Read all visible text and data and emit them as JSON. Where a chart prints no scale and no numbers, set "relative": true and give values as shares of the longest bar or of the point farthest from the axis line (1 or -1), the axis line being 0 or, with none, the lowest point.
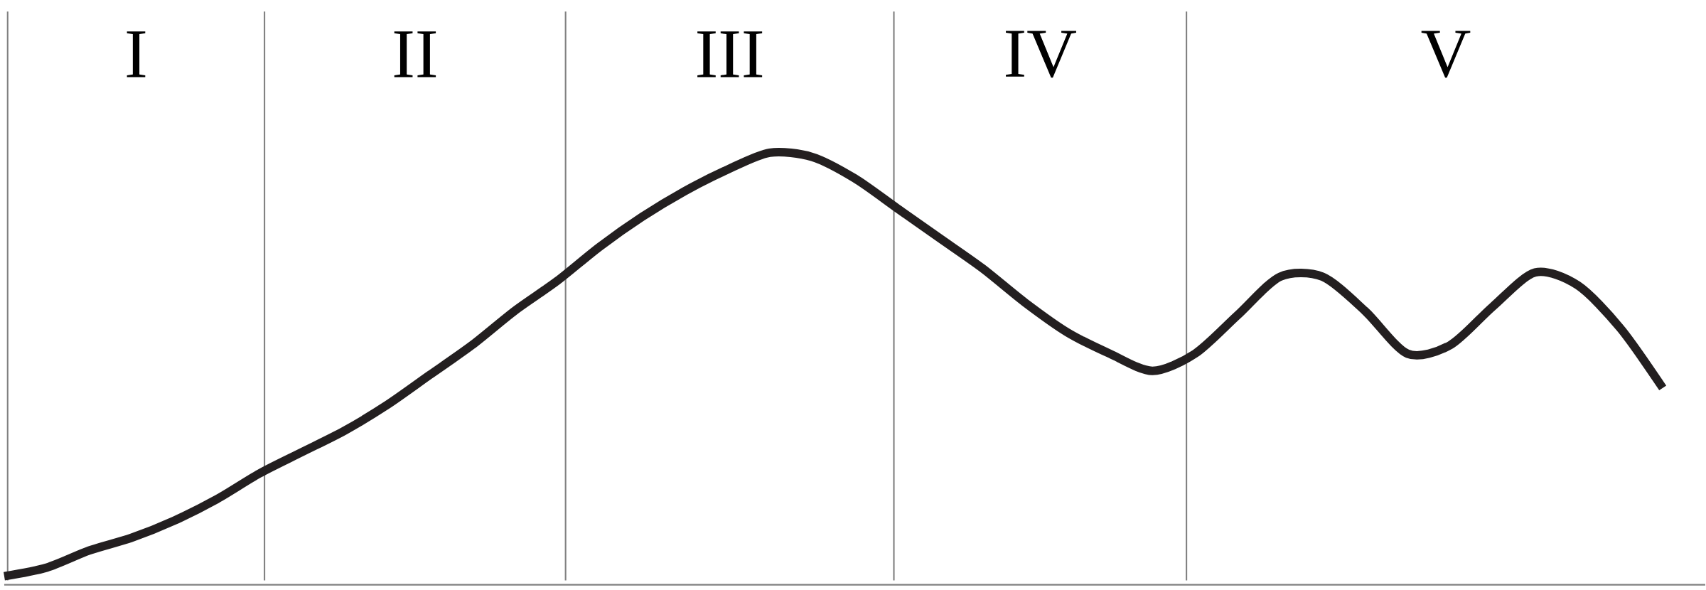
{
  "chart_data": {
    "type": "line",
    "relative": true,
    "color": "#231f20",
    "marker": "none",
    "line_style": "solid",
    "grid": "x",
    "categories": [
      null,
      null,
      null,
      null,
      null,
      null,
      null,
      null,
      null,
      null,
      null,
      null,
      null,
      null,
      null,
      null,
      null,
      null,
      null,
      null,
      null,
      null,
      null,
      null,
      null,
      null,
      null,
      null,
      null,
      null,
      null,
      null,
      null,
      null,
      null,
      null,
      null,
      null,
      null,
      null
    ],
    "values": [
      0.01,
      0.03,
      0.07,
      0.1,
      0.14,
      0.19,
      0.25,
      0.3,
      0.35,
      0.41,
      0.48,
      0.55,
      0.63,
      0.7,
      0.78,
      0.85,
      0.91,
      0.96,
      1,
      0.99,
      0.94,
      0.87,
      0.8,
      0.73,
      0.65,
      0.58,
      0.53,
      0.49,
      0.53,
      0.62,
      0.71,
      0.71,
      0.63,
      0.53,
      0.55,
      0.64,
      0.72,
      0.69,
      0.59,
      0.45
    ],
    "annotations": [
      "I",
      "II",
      "III",
      "IV",
      "V"
    ]
  }
}
